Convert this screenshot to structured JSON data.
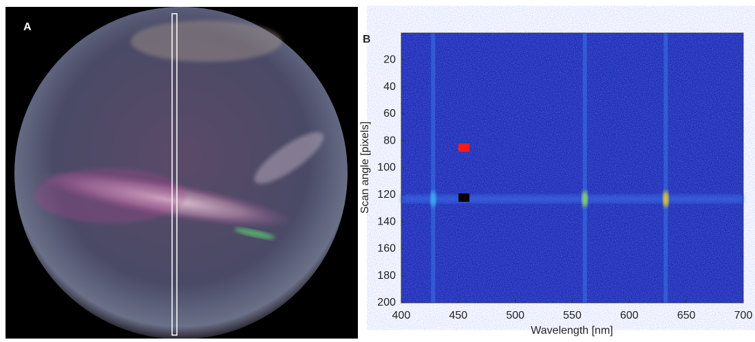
{
  "panel_a": {
    "label": "A"
  },
  "chart_data": {
    "type": "heatmap",
    "panel_label": "B",
    "xlabel": "Wavelength [nm]",
    "ylabel": "Scan angle [pixels]",
    "xlim": [
      400,
      700
    ],
    "ylim": [
      0,
      200
    ],
    "y_reversed": true,
    "xticks": [
      400,
      450,
      500,
      550,
      600,
      650,
      700
    ],
    "yticks": [
      20,
      40,
      60,
      80,
      100,
      120,
      140,
      160,
      180,
      200
    ],
    "background_color": "#1c2ab4",
    "emission_lines": [
      {
        "x": 428,
        "peak_color": "#3ab0ee"
      },
      {
        "x": 561,
        "peak_color": "#8ee060"
      },
      {
        "x": 632,
        "peak_color": "#f2d21e"
      }
    ],
    "band_y": 123,
    "markers": [
      {
        "x": 455,
        "y": 85,
        "color": "#ff1a1a"
      },
      {
        "x": 455,
        "y": 122,
        "color": "#000000"
      }
    ]
  }
}
